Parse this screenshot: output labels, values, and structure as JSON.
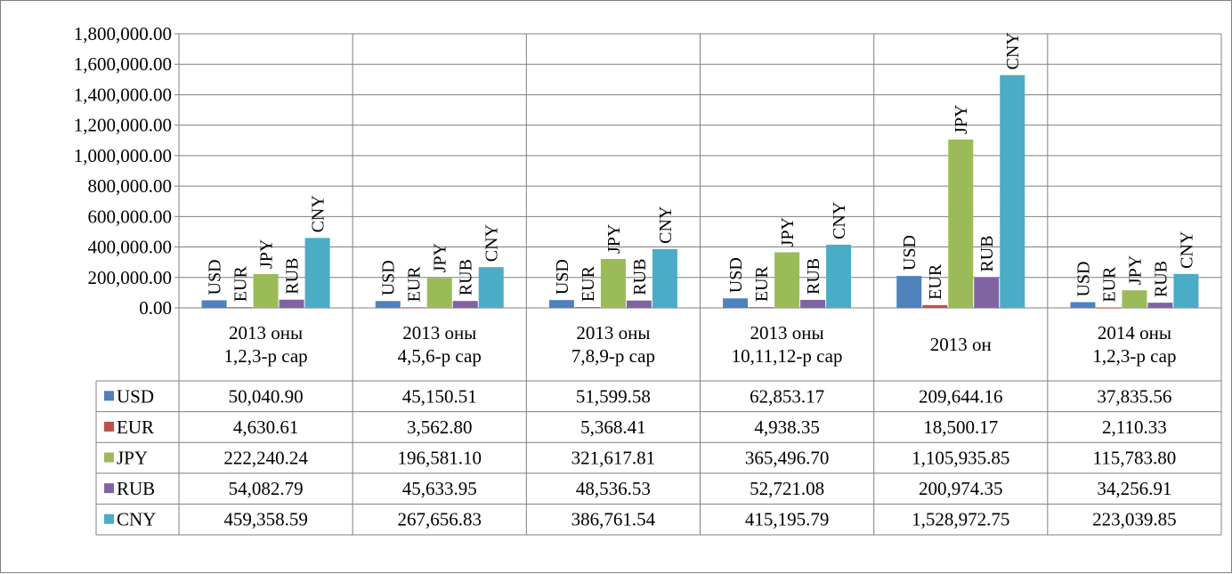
{
  "chart_data": {
    "type": "bar",
    "title": "",
    "xlabel": "",
    "ylabel": "",
    "ylim": [
      0,
      1800000
    ],
    "yticks": [
      "0.00",
      "200,000.00",
      "400,000.00",
      "600,000.00",
      "800,000.00",
      "1,000,000.00",
      "1,200,000.00",
      "1,400,000.00",
      "1,600,000.00",
      "1,800,000.00"
    ],
    "grid": true,
    "legend": "data-table",
    "categories": [
      [
        "2013 оны",
        "1,2,3-р сар"
      ],
      [
        "2013 оны",
        "4,5,6-р сар"
      ],
      [
        "2013 оны",
        "7,8,9-р сар"
      ],
      [
        "2013 оны",
        "10,11,12-р сар"
      ],
      [
        "2013 он"
      ],
      [
        "2014 оны",
        "1,2,3-р сар"
      ]
    ],
    "series": [
      {
        "name": "USD",
        "color": "#4F81BD",
        "values": [
          50040.9,
          45150.51,
          51599.58,
          62853.17,
          209644.16,
          37835.56
        ],
        "labels": [
          "50,040.90",
          "45,150.51",
          "51,599.58",
          "62,853.17",
          "209,644.16",
          "37,835.56"
        ]
      },
      {
        "name": "EUR",
        "color": "#C0504D",
        "values": [
          4630.61,
          3562.8,
          5368.41,
          4938.35,
          18500.17,
          2110.33
        ],
        "labels": [
          "4,630.61",
          "3,562.80",
          "5,368.41",
          "4,938.35",
          "18,500.17",
          "2,110.33"
        ]
      },
      {
        "name": "JPY",
        "color": "#9BBB59",
        "values": [
          222240.24,
          196581.1,
          321617.81,
          365496.7,
          1105935.85,
          115783.8
        ],
        "labels": [
          "222,240.24",
          "196,581.10",
          "321,617.81",
          "365,496.70",
          "1,105,935.85",
          "115,783.80"
        ]
      },
      {
        "name": "RUB",
        "color": "#8064A2",
        "values": [
          54082.79,
          45633.95,
          48536.53,
          52721.08,
          200974.35,
          34256.91
        ],
        "labels": [
          "54,082.79",
          "45,633.95",
          "48,536.53",
          "52,721.08",
          "200,974.35",
          "34,256.91"
        ]
      },
      {
        "name": "CNY",
        "color": "#4BACC6",
        "values": [
          459358.59,
          267656.83,
          386761.54,
          415195.79,
          1528972.75,
          223039.85
        ],
        "labels": [
          "459,358.59",
          "267,656.83",
          "386,761.54",
          "415,195.79",
          "1,528,972.75",
          "223,039.85"
        ]
      }
    ]
  }
}
